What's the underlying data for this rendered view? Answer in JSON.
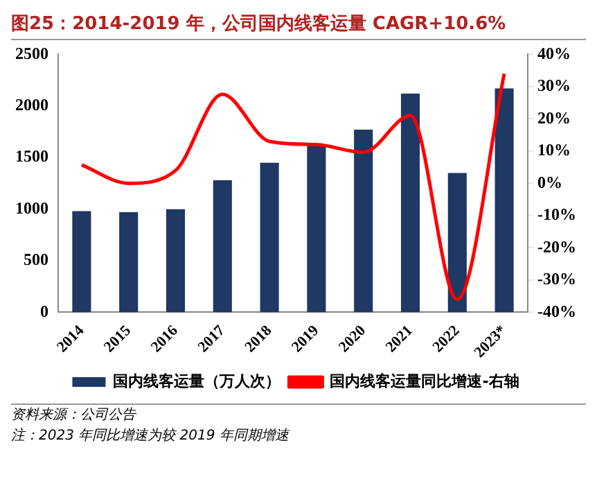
{
  "chart_data": {
    "type": "bar",
    "title": "图25：2014-2019 年，公司国内线客运量 CAGR+10.6%",
    "categories": [
      "2014",
      "2015",
      "2016",
      "2017",
      "2018",
      "2019",
      "2020",
      "2021",
      "2022",
      "2023*"
    ],
    "series": [
      {
        "name": "国内线客运量（万人次）",
        "color": "#1f3864",
        "values": [
          980,
          970,
          1000,
          1280,
          1450,
          1620,
          1770,
          2120,
          1350,
          2170
        ]
      },
      {
        "name": "国内线客运量同比增速-右轴",
        "type": "line",
        "axis": "y2",
        "color": "#ff0000",
        "values": [
          5.7,
          0,
          4,
          27.6,
          13,
          12,
          9.6,
          21,
          -36,
          34
        ]
      }
    ],
    "ylim": [
      0,
      2500
    ],
    "yticks": [
      0,
      500,
      1000,
      1500,
      2000,
      2500
    ],
    "y2lim": [
      -40,
      40
    ],
    "y2ticks": [
      {
        "value": -40,
        "label": "-40%"
      },
      {
        "value": -30,
        "label": "-30%"
      },
      {
        "value": -20,
        "label": "-20%"
      },
      {
        "value": -10,
        "label": "-10%"
      },
      {
        "value": 0,
        "label": "0%"
      },
      {
        "value": 10,
        "label": "10%"
      },
      {
        "value": 20,
        "label": "20%"
      },
      {
        "value": 30,
        "label": "30%"
      },
      {
        "value": 40,
        "label": "40%"
      }
    ],
    "grid": false,
    "legend": "bottom",
    "marker": "none",
    "annotations": [
      "资料来源：公司公告",
      "注：2023 年同比增速为较 2019 年同期增速"
    ]
  }
}
